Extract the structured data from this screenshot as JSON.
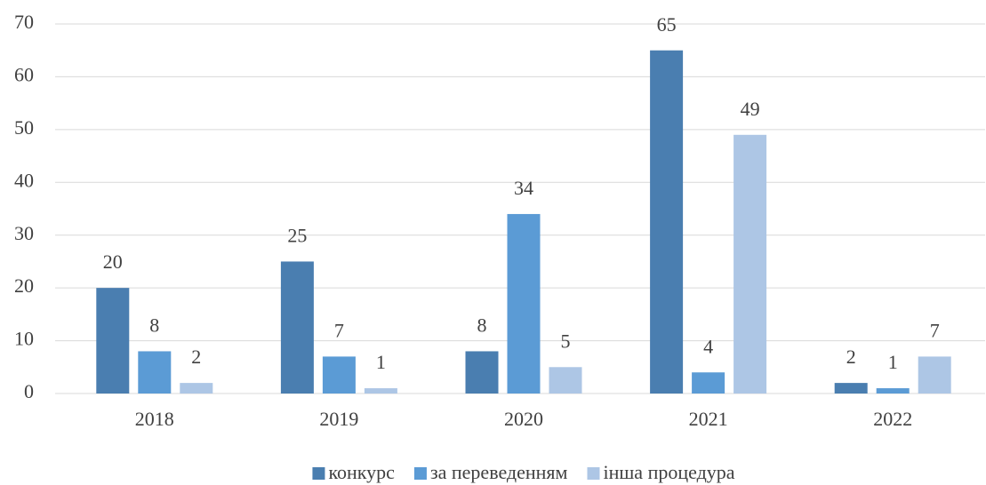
{
  "chart_data": {
    "type": "bar",
    "categories": [
      "2018",
      "2019",
      "2020",
      "2021",
      "2022"
    ],
    "series": [
      {
        "name": "конкурс",
        "color": "#4a7eb0",
        "values": [
          20,
          25,
          8,
          65,
          2
        ]
      },
      {
        "name": "за переведенням",
        "color": "#5b9bd5",
        "values": [
          8,
          7,
          34,
          4,
          1
        ]
      },
      {
        "name": "інша процедура",
        "color": "#adc6e5",
        "values": [
          2,
          1,
          5,
          49,
          7
        ]
      }
    ],
    "ylim": [
      0,
      70
    ],
    "yticks": [
      0,
      10,
      20,
      30,
      40,
      50,
      60,
      70
    ],
    "grid": true,
    "legend": "bottom"
  }
}
